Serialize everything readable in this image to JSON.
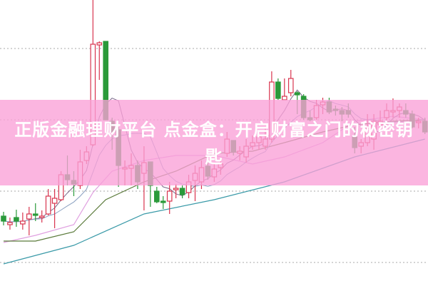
{
  "banner": {
    "title": "正版金融理财平台 点金盒：开启财富之门的秘密钥匙",
    "background": "#faa0d7",
    "text_color": "#ffffff"
  },
  "chart_data": {
    "type": "candlestick",
    "title": "",
    "xlabel": "",
    "ylabel": "",
    "axes_labels_shown": false,
    "grid": "horizontal dotted",
    "gridlines": [
      0,
      10,
      20,
      30
    ],
    "ylim": [
      -3.3,
      36.8
    ],
    "colors": {
      "up": "#d8344e",
      "down": "#2a9a3a",
      "grid": "#aaaaaa",
      "ma5": "#7a6a8a",
      "ma10": "#8aa0c0",
      "pink_line": "#e0a0e0",
      "green_line": "#5a7a3a",
      "teal_line": "#3a9aa8"
    },
    "candles_ohlc": [
      [
        6.5,
        7.1,
        5.2,
        5.8
      ],
      [
        5.3,
        6.3,
        4.6,
        5.6
      ],
      [
        6.3,
        7.4,
        5.0,
        5.8
      ],
      [
        5.4,
        7.0,
        4.6,
        5.8
      ],
      [
        6.1,
        7.8,
        3.8,
        6.8
      ],
      [
        6.8,
        8.3,
        5.8,
        6.6
      ],
      [
        6.3,
        7.3,
        5.6,
        6.5
      ],
      [
        6.8,
        10.3,
        6.6,
        9.3
      ],
      [
        8.3,
        10.3,
        4.8,
        9.0
      ],
      [
        8.8,
        12.8,
        8.6,
        12.3
      ],
      [
        12.3,
        15.0,
        10.8,
        11.6
      ],
      [
        11.5,
        12.8,
        9.3,
        11.0
      ],
      [
        10.8,
        15.8,
        10.3,
        14.1
      ],
      [
        14.3,
        16.3,
        13.8,
        15.5
      ],
      [
        16.5,
        36.8,
        16.3,
        30.6
      ],
      [
        30.5,
        31.0,
        25.6,
        30.8
      ],
      [
        31.0,
        31.0,
        20.0,
        20.0
      ],
      [
        19.8,
        20.3,
        15.8,
        18.3
      ],
      [
        18.6,
        19.0,
        10.6,
        13.6
      ],
      [
        13.1,
        14.3,
        10.8,
        13.3
      ],
      [
        13.2,
        15.3,
        10.8,
        13.6
      ],
      [
        13.6,
        14.3,
        10.3,
        11.3
      ],
      [
        12.5,
        16.3,
        7.3,
        14.0
      ],
      [
        14.1,
        14.1,
        7.8,
        10.8
      ],
      [
        10.0,
        10.6,
        8.3,
        8.5
      ],
      [
        8.6,
        9.3,
        7.5,
        8.4
      ],
      [
        8.6,
        11.3,
        6.8,
        10.0
      ],
      [
        10.2,
        11.0,
        9.0,
        10.4
      ],
      [
        10.4,
        10.8,
        9.0,
        9.5
      ],
      [
        9.8,
        12.3,
        9.0,
        11.3
      ],
      [
        11.5,
        13.6,
        8.6,
        12.5
      ],
      [
        11.3,
        14.3,
        10.3,
        13.3
      ],
      [
        13.5,
        14.0,
        11.6,
        12.1
      ],
      [
        12.0,
        13.8,
        11.3,
        13.1
      ],
      [
        13.3,
        14.8,
        12.3,
        13.8
      ],
      [
        15.3,
        18.3,
        14.8,
        17.3
      ],
      [
        17.1,
        17.1,
        15.0,
        15.5
      ],
      [
        15.3,
        16.3,
        14.3,
        15.6
      ],
      [
        14.8,
        17.3,
        14.0,
        16.3
      ],
      [
        16.3,
        17.8,
        15.8,
        16.8
      ],
      [
        16.8,
        18.3,
        15.8,
        17.6
      ],
      [
        16.3,
        18.8,
        15.8,
        17.3
      ],
      [
        17.3,
        26.8,
        16.8,
        25.3
      ],
      [
        25.3,
        25.8,
        22.8,
        23.0
      ],
      [
        22.8,
        25.8,
        22.8,
        23.3
      ],
      [
        23.8,
        27.0,
        23.3,
        25.8
      ],
      [
        23.8,
        24.0,
        20.8,
        23.5
      ],
      [
        23.3,
        23.6,
        20.0,
        20.3
      ],
      [
        20.3,
        21.3,
        19.8,
        20.0
      ],
      [
        20.3,
        22.8,
        20.0,
        22.0
      ],
      [
        22.1,
        23.1,
        20.8,
        22.5
      ],
      [
        22.5,
        23.1,
        20.8,
        21.1
      ],
      [
        21.5,
        22.0,
        20.6,
        21.3
      ],
      [
        21.3,
        21.8,
        19.8,
        20.8
      ],
      [
        21.3,
        22.3,
        20.3,
        20.8
      ],
      [
        17.6,
        19.0,
        15.3,
        16.1
      ],
      [
        16.3,
        17.3,
        15.3,
        16.8
      ],
      [
        16.8,
        20.8,
        16.3,
        18.8
      ],
      [
        17.3,
        20.8,
        15.8,
        19.8
      ],
      [
        19.3,
        21.3,
        18.8,
        19.8
      ],
      [
        20.3,
        22.3,
        18.8,
        21.3
      ],
      [
        21.1,
        23.0,
        20.3,
        21.3
      ],
      [
        21.3,
        22.3,
        20.3,
        21.8
      ],
      [
        21.3,
        22.3,
        20.3,
        20.8
      ],
      [
        20.8,
        21.3,
        18.8,
        19.0
      ],
      [
        19.6,
        20.3,
        18.8,
        19.8
      ],
      [
        19.8,
        20.3,
        18.0,
        18.3
      ]
    ],
    "moving_averages_computed": [
      5,
      10
    ],
    "lines": [
      {
        "key": "pink_line",
        "points": [
          [
            0,
            2.8
          ],
          [
            5,
            3.8
          ],
          [
            11,
            5.3
          ],
          [
            14,
            9.8
          ],
          [
            17,
            12.8
          ],
          [
            22,
            14.3
          ],
          [
            27,
            15.0
          ],
          [
            33,
            15.0
          ],
          [
            39,
            13.8
          ],
          [
            44,
            14.8
          ],
          [
            50,
            16.8
          ],
          [
            55,
            19.8
          ],
          [
            61,
            20.5
          ],
          [
            66,
            20.0
          ]
        ]
      },
      {
        "key": "green_line",
        "points": [
          [
            0,
            3.0
          ],
          [
            5,
            3.0
          ],
          [
            11,
            4.3
          ],
          [
            16,
            8.8
          ],
          [
            22,
            11.3
          ],
          [
            27,
            12.8
          ],
          [
            33,
            15.3
          ],
          [
            39,
            15.6
          ],
          [
            44,
            16.8
          ],
          [
            50,
            18.3
          ],
          [
            55,
            19.3
          ],
          [
            61,
            19.8
          ],
          [
            66,
            20.0
          ]
        ]
      },
      {
        "key": "teal_line",
        "points": [
          [
            0,
            -0.2
          ],
          [
            11,
            2.4
          ],
          [
            22,
            6.8
          ],
          [
            33,
            8.8
          ],
          [
            44,
            11.3
          ],
          [
            55,
            14.8
          ],
          [
            66,
            17.3
          ]
        ]
      }
    ]
  }
}
